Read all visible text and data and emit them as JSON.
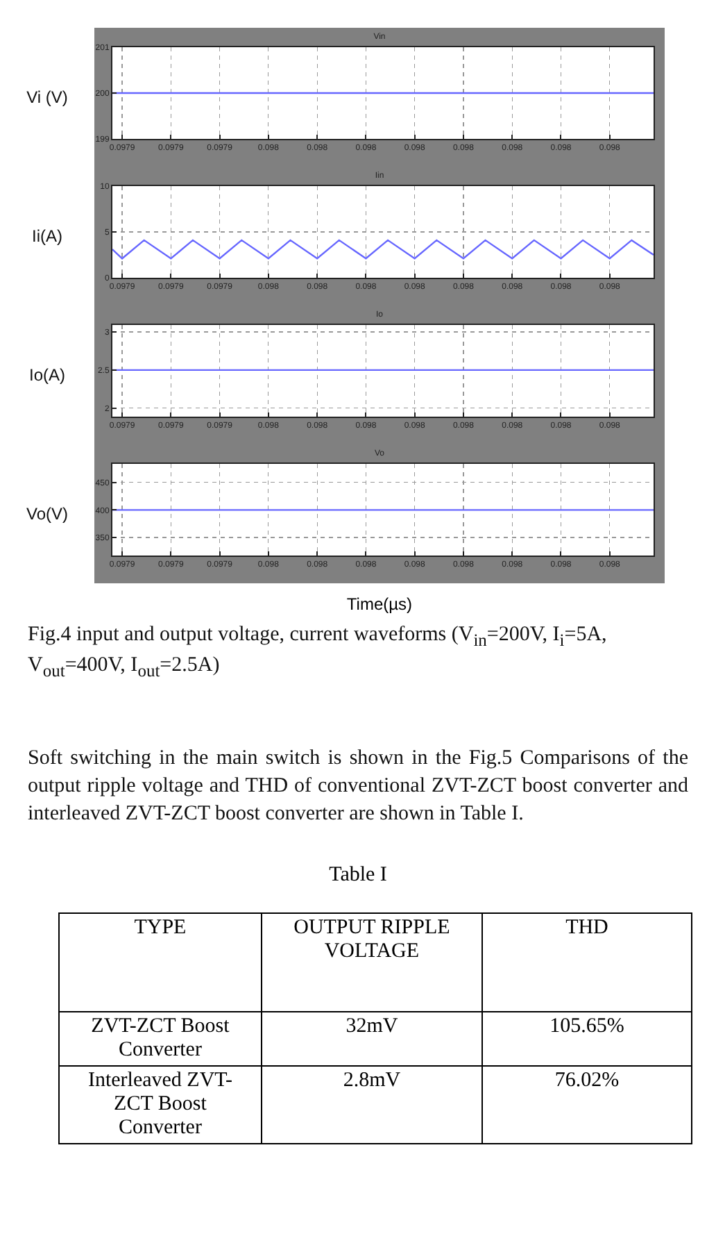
{
  "chart_data": [
    {
      "type": "line",
      "title": "Vin",
      "ylabel": "Vi (V)",
      "xlim": [
        0.097918,
        0.098029
      ],
      "ylim": [
        199,
        201
      ],
      "yticks": [
        199,
        200,
        201
      ],
      "grid": true,
      "xticks": [
        {
          "value": 0.09792,
          "label": "0.0979"
        },
        {
          "value": 0.09793,
          "label": "0.0979"
        },
        {
          "value": 0.09794,
          "label": "0.0979"
        },
        {
          "value": 0.09795,
          "label": "0.098"
        },
        {
          "value": 0.09796,
          "label": "0.098"
        },
        {
          "value": 0.09797,
          "label": "0.098"
        },
        {
          "value": 0.09798,
          "label": "0.098"
        },
        {
          "value": 0.09799,
          "label": "0.098"
        },
        {
          "value": 0.098,
          "label": "0.098"
        },
        {
          "value": 0.09801,
          "label": "0.098"
        },
        {
          "value": 0.09802,
          "label": "0.098"
        }
      ],
      "x": [
        0.097918,
        0.098029
      ],
      "series": [
        {
          "color": "#6666ff",
          "values": [
            200,
            200
          ]
        }
      ]
    },
    {
      "type": "line",
      "title": "Iin",
      "ylabel": "Ii(A)",
      "xlim": [
        0.097918,
        0.098029
      ],
      "ylim": [
        0,
        10
      ],
      "yticks": [
        0,
        5,
        10
      ],
      "grid": true,
      "xticks": [
        {
          "value": 0.09792,
          "label": "0.0979"
        },
        {
          "value": 0.09793,
          "label": "0.0979"
        },
        {
          "value": 0.09794,
          "label": "0.0979"
        },
        {
          "value": 0.09795,
          "label": "0.098"
        },
        {
          "value": 0.09796,
          "label": "0.098"
        },
        {
          "value": 0.09797,
          "label": "0.098"
        },
        {
          "value": 0.09798,
          "label": "0.098"
        },
        {
          "value": 0.09799,
          "label": "0.098"
        },
        {
          "value": 0.098,
          "label": "0.098"
        },
        {
          "value": 0.09801,
          "label": "0.098"
        },
        {
          "value": 0.09802,
          "label": "0.098"
        }
      ],
      "x": [
        0.097918,
        0.09792,
        0.0979245,
        0.09793,
        0.0979345,
        0.09794,
        0.0979445,
        0.09795,
        0.0979545,
        0.09796,
        0.0979645,
        0.09797,
        0.0979745,
        0.09798,
        0.0979845,
        0.09799,
        0.0979945,
        0.098,
        0.0980045,
        0.09801,
        0.0980145,
        0.09802,
        0.0980245,
        0.098029
      ],
      "series": [
        {
          "color": "#6666ff",
          "values": [
            3.1,
            2.1,
            4.1,
            2.1,
            4.1,
            2.1,
            4.1,
            2.1,
            4.1,
            2.1,
            4.1,
            2.1,
            4.1,
            2.1,
            4.1,
            2.1,
            4.1,
            2.1,
            4.1,
            2.1,
            4.1,
            2.1,
            4.1,
            2.5
          ]
        }
      ]
    },
    {
      "type": "line",
      "title": "Io",
      "ylabel": "Io(A)",
      "xlim": [
        0.097918,
        0.098029
      ],
      "ylim": [
        1.89,
        3.09
      ],
      "yticks": [
        2,
        2.5,
        3
      ],
      "grid": true,
      "xticks": [
        {
          "value": 0.09792,
          "label": "0.0979"
        },
        {
          "value": 0.09793,
          "label": "0.0979"
        },
        {
          "value": 0.09794,
          "label": "0.0979"
        },
        {
          "value": 0.09795,
          "label": "0.098"
        },
        {
          "value": 0.09796,
          "label": "0.098"
        },
        {
          "value": 0.09797,
          "label": "0.098"
        },
        {
          "value": 0.09798,
          "label": "0.098"
        },
        {
          "value": 0.09799,
          "label": "0.098"
        },
        {
          "value": 0.098,
          "label": "0.098"
        },
        {
          "value": 0.09801,
          "label": "0.098"
        },
        {
          "value": 0.09802,
          "label": "0.098"
        }
      ],
      "x": [
        0.097918,
        0.098029
      ],
      "series": [
        {
          "color": "#6666ff",
          "values": [
            2.5,
            2.5
          ]
        }
      ]
    },
    {
      "type": "line",
      "title": "Vo",
      "ylabel": "Vo(V)",
      "xlabel": "Time(µs)",
      "xlim": [
        0.097918,
        0.098029
      ],
      "ylim": [
        317,
        484
      ],
      "yticks": [
        350,
        400,
        450
      ],
      "grid": true,
      "xticks": [
        {
          "value": 0.09792,
          "label": "0.0979"
        },
        {
          "value": 0.09793,
          "label": "0.0979"
        },
        {
          "value": 0.09794,
          "label": "0.0979"
        },
        {
          "value": 0.09795,
          "label": "0.098"
        },
        {
          "value": 0.09796,
          "label": "0.098"
        },
        {
          "value": 0.09797,
          "label": "0.098"
        },
        {
          "value": 0.09798,
          "label": "0.098"
        },
        {
          "value": 0.09799,
          "label": "0.098"
        },
        {
          "value": 0.098,
          "label": "0.098"
        },
        {
          "value": 0.09801,
          "label": "0.098"
        },
        {
          "value": 0.09802,
          "label": "0.098"
        }
      ],
      "x": [
        0.097918,
        0.098029
      ],
      "series": [
        {
          "color": "#6666ff",
          "values": [
            400,
            400
          ]
        }
      ],
      "annotations": [
        "Fig.4 input and output voltage, current waveforms (V$_{in}$=200V, I$_{i}$=5A, V$_{out}$=400V, I$_{out}$=2.5A)"
      ]
    },
    {
      "type": "other",
      "annotations": [
        "Soft switching in the main switch is shown in the Fig.5 Comparisons of the output ripple voltage and THD of conventional ZVT-ZCT boost converter and interleaved ZVT-ZCT boost converter are shown in Table I."
      ]
    },
    {
      "type": "other",
      "title": "Table I",
      "categories": [
        "TYPE",
        "OUTPUT RIPPLE VOLTAGE",
        "THD"
      ],
      "y_categories": [
        "ZVT-ZCT Boost Converter",
        "Interleaved ZVT-ZCT Boost Converter"
      ],
      "cell_labels": [
        [
          "32mV",
          "105.65%"
        ],
        [
          "2.8mV",
          "76.02%"
        ]
      ]
    }
  ]
}
